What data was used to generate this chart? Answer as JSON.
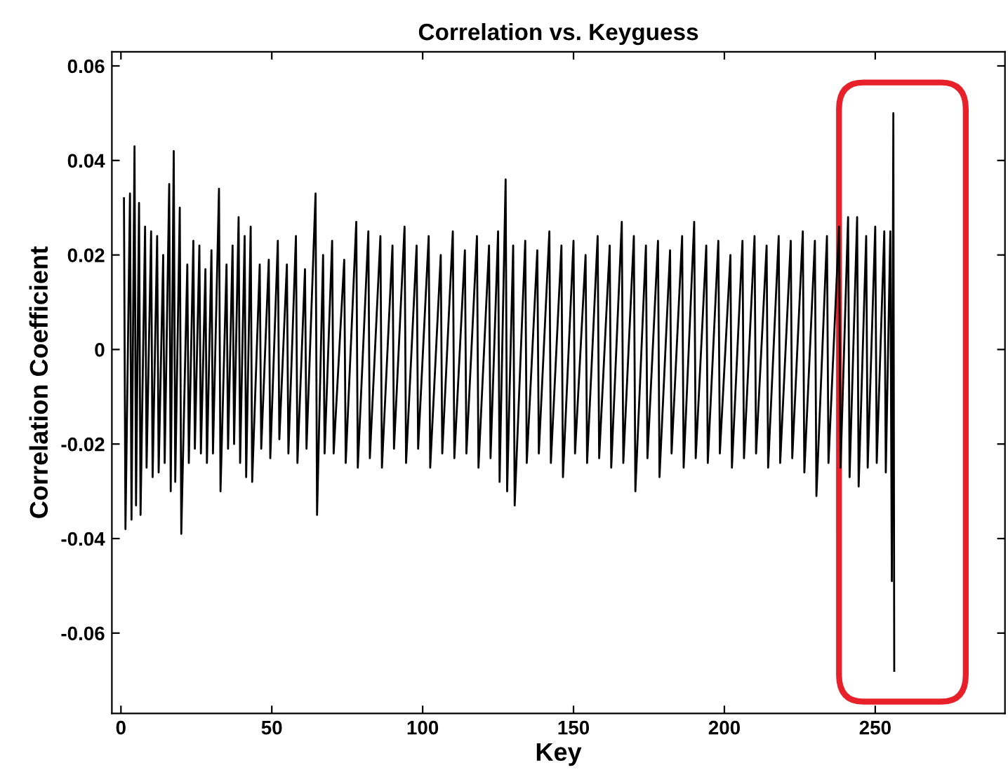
{
  "chart_data": {
    "type": "line",
    "title": "Correlation vs. Keyguess",
    "xlabel": "Key",
    "ylabel": "Correlation Coefficient",
    "xlim": [
      -3,
      293
    ],
    "ylim": [
      -0.077,
      0.063
    ],
    "xticks": [
      0,
      50,
      100,
      150,
      200,
      250
    ],
    "yticks": [
      {
        "value": -0.06,
        "label": "-0.06"
      },
      {
        "value": -0.04,
        "label": "-0.04"
      },
      {
        "value": -0.02,
        "label": "-0.02"
      },
      0,
      0.02,
      0.04,
      0.06
    ],
    "grid": false,
    "legend": false,
    "marker": "none",
    "line_style": "solid",
    "series": [
      {
        "color": "#000000",
        "x": [
          1,
          1.5,
          3,
          3.5,
          4.5,
          5,
          6,
          6.5,
          8,
          8.5,
          10,
          10.5,
          12,
          12.5,
          14,
          14.5,
          16,
          16.5,
          17.5,
          18,
          19.5,
          20,
          22,
          22.5,
          24,
          24.5,
          26,
          26.5,
          28,
          28.5,
          30,
          30.5,
          32.5,
          33,
          35,
          35.5,
          37,
          37.5,
          39,
          39.5,
          41,
          41.5,
          43,
          43.5,
          46,
          46.5,
          49,
          49.5,
          52,
          52.5,
          55,
          55.5,
          58,
          58.5,
          61,
          61.5,
          64.5,
          65,
          67,
          67.5,
          70,
          70.5,
          74,
          74.5,
          78,
          78.5,
          82,
          82.5,
          86,
          86.5,
          90,
          90.5,
          94,
          94.5,
          98,
          98.5,
          102,
          102.5,
          106,
          106.5,
          110,
          110.5,
          114,
          114.5,
          118,
          118.5,
          122,
          122.5,
          125,
          125.5,
          127.5,
          128,
          130,
          130.5,
          134,
          134.5,
          138,
          138.5,
          142,
          142.5,
          146,
          146.5,
          150,
          150.5,
          154,
          154.5,
          158,
          158.5,
          162,
          162.5,
          166,
          166.5,
          170,
          170.5,
          174,
          174.5,
          178,
          178.5,
          182,
          182.5,
          186,
          186.5,
          190,
          190.5,
          194,
          194.5,
          198,
          198.5,
          202,
          202.5,
          206,
          206.5,
          210,
          210.5,
          214,
          214.5,
          218,
          218.5,
          222,
          222.5,
          226,
          226.5,
          230,
          230.5,
          234,
          234.5,
          238,
          238.5,
          241,
          241.5,
          244,
          244.5,
          247,
          247.5,
          250,
          250.5,
          253,
          253.5,
          255,
          255.5,
          256,
          256.3
        ],
        "values": [
          0.032,
          -0.038,
          0.033,
          -0.036,
          0.043,
          -0.033,
          0.031,
          -0.035,
          0.026,
          -0.025,
          0.025,
          -0.027,
          0.024,
          -0.026,
          0.02,
          -0.024,
          0.035,
          -0.03,
          0.042,
          -0.028,
          0.03,
          -0.039,
          0.018,
          -0.024,
          0.023,
          -0.021,
          0.022,
          -0.022,
          0.017,
          -0.024,
          0.021,
          -0.022,
          0.034,
          -0.03,
          0.018,
          -0.021,
          0.022,
          -0.02,
          0.028,
          -0.024,
          0.024,
          -0.027,
          0.026,
          -0.028,
          0.018,
          -0.021,
          0.019,
          -0.023,
          0.023,
          -0.019,
          0.018,
          -0.022,
          0.024,
          -0.024,
          0.017,
          -0.021,
          0.033,
          -0.035,
          0.02,
          -0.022,
          0.023,
          -0.022,
          0.019,
          -0.024,
          0.027,
          -0.025,
          0.025,
          -0.023,
          0.024,
          -0.025,
          0.022,
          -0.021,
          0.026,
          -0.024,
          0.022,
          -0.021,
          0.024,
          -0.025,
          0.02,
          -0.022,
          0.025,
          -0.023,
          0.021,
          -0.022,
          0.024,
          -0.025,
          0.022,
          -0.023,
          0.025,
          -0.028,
          0.036,
          -0.03,
          0.022,
          -0.033,
          0.023,
          -0.024,
          0.021,
          -0.022,
          0.025,
          -0.024,
          0.022,
          -0.027,
          0.023,
          -0.022,
          0.02,
          -0.024,
          0.024,
          -0.023,
          0.022,
          -0.025,
          0.027,
          -0.024,
          0.024,
          -0.03,
          0.022,
          -0.023,
          0.023,
          -0.027,
          0.021,
          -0.022,
          0.024,
          -0.025,
          0.027,
          -0.023,
          0.022,
          -0.024,
          0.023,
          -0.022,
          0.02,
          -0.025,
          0.023,
          -0.023,
          0.024,
          -0.022,
          0.022,
          -0.025,
          0.024,
          -0.024,
          0.023,
          -0.023,
          0.025,
          -0.026,
          0.023,
          -0.031,
          0.024,
          -0.024,
          0.026,
          -0.025,
          0.028,
          -0.027,
          0.028,
          -0.029,
          0.024,
          -0.025,
          0.026,
          -0.024,
          0.025,
          -0.026,
          0.025,
          -0.049,
          0.05,
          -0.068
        ]
      }
    ]
  }
}
